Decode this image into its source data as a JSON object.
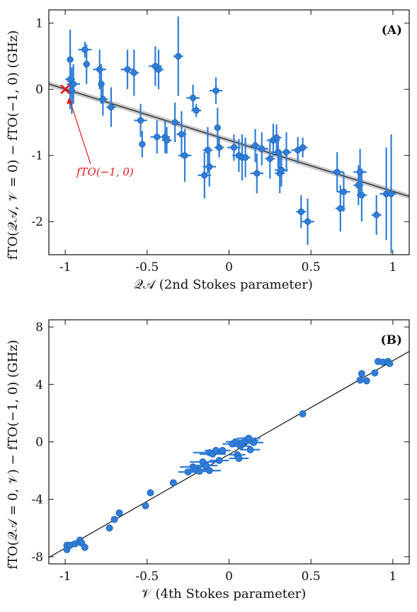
{
  "chart_data": [
    {
      "type": "scatter",
      "panel_label": "(A)",
      "xlabel": "𝒬𝒜 (2nd Stokes parameter)",
      "ylabel": "fTO(𝒬𝒜, 𝒱 = 0) − fTO(−1, 0) (GHz)",
      "xlim": [
        -1.1,
        1.1
      ],
      "ylim": [
        -2.5,
        1.2
      ],
      "x_ticks": [
        -1,
        -0.5,
        0,
        0.5,
        1
      ],
      "x_tick_labels": [
        "-1",
        "-0.5",
        "0",
        "0.5",
        "1"
      ],
      "y_ticks": [
        1,
        0,
        -1,
        -2
      ],
      "y_tick_labels": [
        "1",
        "0",
        "-1",
        "-2"
      ],
      "grid": false,
      "annotation": {
        "text": "fTO(−1, 0)",
        "x": -1.0,
        "y": 0.0
      },
      "fit_line": {
        "x": [
          -1.1,
          1.1
        ],
        "y": [
          0.08,
          -1.62
        ]
      },
      "points": [
        {
          "x": -0.97,
          "y": 0.45,
          "xerr": 0.02,
          "yerr": 0.45
        },
        {
          "x": -0.97,
          "y": 0.15,
          "xerr": 0.03,
          "yerr": 0.45
        },
        {
          "x": -0.96,
          "y": -0.02,
          "xerr": 0.02,
          "yerr": 0.35
        },
        {
          "x": -0.95,
          "y": 0.08,
          "xerr": 0.04,
          "yerr": 0.3
        },
        {
          "x": -0.88,
          "y": 0.6,
          "xerr": 0.04,
          "yerr": 0.12
        },
        {
          "x": -0.87,
          "y": 0.38,
          "xerr": 0.02,
          "yerr": 0.3
        },
        {
          "x": -0.79,
          "y": 0.3,
          "xerr": 0.04,
          "yerr": 0.3
        },
        {
          "x": -0.78,
          "y": 0.08,
          "xerr": 0.02,
          "yerr": 0.3
        },
        {
          "x": -0.77,
          "y": -0.15,
          "xerr": 0.03,
          "yerr": 0.25
        },
        {
          "x": -0.72,
          "y": -0.27,
          "xerr": 0.03,
          "yerr": 0.3
        },
        {
          "x": -0.62,
          "y": 0.3,
          "xerr": 0.04,
          "yerr": 0.3
        },
        {
          "x": -0.58,
          "y": 0.25,
          "xerr": 0.03,
          "yerr": 0.35
        },
        {
          "x": -0.54,
          "y": -0.47,
          "xerr": 0.04,
          "yerr": 0.25
        },
        {
          "x": -0.53,
          "y": -0.83,
          "xerr": 0.02,
          "yerr": 0.2
        },
        {
          "x": -0.45,
          "y": 0.35,
          "xerr": 0.04,
          "yerr": 0.3
        },
        {
          "x": -0.43,
          "y": 0.3,
          "xerr": 0.03,
          "yerr": 0.3
        },
        {
          "x": -0.44,
          "y": -0.72,
          "xerr": 0.04,
          "yerr": 0.25
        },
        {
          "x": -0.39,
          "y": -0.72,
          "xerr": 0.03,
          "yerr": 0.25
        },
        {
          "x": -0.38,
          "y": -0.77,
          "xerr": 0.03,
          "yerr": 0.2
        },
        {
          "x": -0.33,
          "y": -0.5,
          "xerr": 0.03,
          "yerr": 0.3
        },
        {
          "x": -0.31,
          "y": 0.5,
          "xerr": 0.03,
          "yerr": 0.6
        },
        {
          "x": -0.29,
          "y": -0.68,
          "xerr": 0.03,
          "yerr": 0.35
        },
        {
          "x": -0.27,
          "y": -1.0,
          "xerr": 0.04,
          "yerr": 0.4
        },
        {
          "x": -0.22,
          "y": -0.13,
          "xerr": 0.04,
          "yerr": 0.2
        },
        {
          "x": -0.2,
          "y": -0.32,
          "xerr": 0.03,
          "yerr": 0.1
        },
        {
          "x": -0.15,
          "y": -1.3,
          "xerr": 0.04,
          "yerr": 0.35
        },
        {
          "x": -0.13,
          "y": -0.92,
          "xerr": 0.03,
          "yerr": 0.35
        },
        {
          "x": -0.12,
          "y": -1.17,
          "xerr": 0.04,
          "yerr": 0.3
        },
        {
          "x": -0.08,
          "y": -0.02,
          "xerr": 0.04,
          "yerr": 0.2
        },
        {
          "x": -0.07,
          "y": -0.58,
          "xerr": 0.02,
          "yerr": 0.3
        },
        {
          "x": -0.06,
          "y": -0.88,
          "xerr": 0.03,
          "yerr": 0.15
        },
        {
          "x": 0.03,
          "y": -0.88,
          "xerr": 0.04,
          "yerr": 0.2
        },
        {
          "x": 0.06,
          "y": -1.0,
          "xerr": 0.04,
          "yerr": 0.25
        },
        {
          "x": 0.08,
          "y": -1.03,
          "xerr": 0.04,
          "yerr": 0.35
        },
        {
          "x": 0.1,
          "y": -1.03,
          "xerr": 0.03,
          "yerr": 0.3
        },
        {
          "x": 0.16,
          "y": -0.85,
          "xerr": 0.03,
          "yerr": 0.25
        },
        {
          "x": 0.17,
          "y": -1.27,
          "xerr": 0.04,
          "yerr": 0.3
        },
        {
          "x": 0.2,
          "y": -0.9,
          "xerr": 0.04,
          "yerr": 0.25
        },
        {
          "x": 0.25,
          "y": -1.05,
          "xerr": 0.03,
          "yerr": 0.3
        },
        {
          "x": 0.27,
          "y": -0.77,
          "xerr": 0.04,
          "yerr": 0.25
        },
        {
          "x": 0.29,
          "y": -0.73,
          "xerr": 0.03,
          "yerr": 0.2
        },
        {
          "x": 0.3,
          "y": -0.95,
          "xerr": 0.04,
          "yerr": 0.25
        },
        {
          "x": 0.31,
          "y": -1.27,
          "xerr": 0.03,
          "yerr": 0.3
        },
        {
          "x": 0.32,
          "y": -1.22,
          "xerr": 0.04,
          "yerr": 0.25
        },
        {
          "x": 0.35,
          "y": -0.95,
          "xerr": 0.03,
          "yerr": 0.3
        },
        {
          "x": 0.42,
          "y": -0.92,
          "xerr": 0.04,
          "yerr": 0.2
        },
        {
          "x": 0.44,
          "y": -1.85,
          "xerr": 0.03,
          "yerr": 0.25
        },
        {
          "x": 0.45,
          "y": -0.88,
          "xerr": 0.03,
          "yerr": 0.15
        },
        {
          "x": 0.48,
          "y": -2.0,
          "xerr": 0.04,
          "yerr": 0.35
        },
        {
          "x": 0.66,
          "y": -1.25,
          "xerr": 0.04,
          "yerr": 0.3
        },
        {
          "x": 0.68,
          "y": -1.8,
          "xerr": 0.03,
          "yerr": 0.35
        },
        {
          "x": 0.7,
          "y": -1.55,
          "xerr": 0.04,
          "yerr": 0.3
        },
        {
          "x": 0.79,
          "y": -1.45,
          "xerr": 0.03,
          "yerr": 0.3
        },
        {
          "x": 0.8,
          "y": -1.25,
          "xerr": 0.04,
          "yerr": 0.35
        },
        {
          "x": 0.81,
          "y": -1.6,
          "xerr": 0.03,
          "yerr": 0.4
        },
        {
          "x": 0.9,
          "y": -1.9,
          "xerr": 0.03,
          "yerr": 0.3
        },
        {
          "x": 0.96,
          "y": -1.58,
          "xerr": 0.04,
          "yerr": 0.7
        },
        {
          "x": 0.99,
          "y": -1.58,
          "xerr": 0.03,
          "yerr": 0.9
        }
      ]
    },
    {
      "type": "scatter",
      "panel_label": "(B)",
      "xlabel": "𝒱 (4th Stokes parameter)",
      "ylabel": "fTO(𝒬𝒜 = 0, 𝒱) − fTO(−1, 0) (GHz)",
      "xlim": [
        -1.1,
        1.1
      ],
      "ylim": [
        -8.5,
        8.5
      ],
      "x_ticks": [
        -1,
        -0.5,
        0,
        0.5,
        1
      ],
      "x_tick_labels": [
        "-1",
        "-0.5",
        "0",
        "0.5",
        "1"
      ],
      "y_ticks": [
        8,
        4,
        0,
        -4,
        -8
      ],
      "y_tick_labels": [
        "8",
        "4",
        "0",
        "-4",
        "-8"
      ],
      "grid": false,
      "fit_line": {
        "x": [
          -1.1,
          1.1
        ],
        "y": [
          -8.05,
          6.3
        ]
      },
      "points": [
        {
          "x": -0.99,
          "y": -7.5,
          "xerr": 0.01
        },
        {
          "x": -0.99,
          "y": -7.2,
          "xerr": 0.01
        },
        {
          "x": -0.97,
          "y": -7.2,
          "xerr": 0.01
        },
        {
          "x": -0.94,
          "y": -7.1,
          "xerr": 0.01
        },
        {
          "x": -0.91,
          "y": -6.85,
          "xerr": 0.01
        },
        {
          "x": -0.9,
          "y": -7.05,
          "xerr": 0.01
        },
        {
          "x": -0.88,
          "y": -7.35,
          "xerr": 0.01
        },
        {
          "x": -0.73,
          "y": -6.0,
          "xerr": 0.01
        },
        {
          "x": -0.7,
          "y": -5.4,
          "xerr": 0.01
        },
        {
          "x": -0.67,
          "y": -4.95,
          "xerr": 0.01
        },
        {
          "x": -0.51,
          "y": -4.45,
          "xerr": 0.01
        },
        {
          "x": -0.48,
          "y": -3.55,
          "xerr": 0.01
        },
        {
          "x": -0.34,
          "y": -2.85,
          "xerr": 0.02
        },
        {
          "x": -0.25,
          "y": -2.1,
          "xerr": 0.06
        },
        {
          "x": -0.22,
          "y": -1.75,
          "xerr": 0.08
        },
        {
          "x": -0.2,
          "y": -1.95,
          "xerr": 0.07
        },
        {
          "x": -0.18,
          "y": -2.05,
          "xerr": 0.06
        },
        {
          "x": -0.16,
          "y": -1.4,
          "xerr": 0.08
        },
        {
          "x": -0.14,
          "y": -1.65,
          "xerr": 0.07
        },
        {
          "x": -0.12,
          "y": -0.75,
          "xerr": 0.1
        },
        {
          "x": -0.12,
          "y": -2.0,
          "xerr": 0.07
        },
        {
          "x": -0.1,
          "y": -0.85,
          "xerr": 0.08
        },
        {
          "x": -0.08,
          "y": -0.6,
          "xerr": 0.07
        },
        {
          "x": -0.06,
          "y": -1.3,
          "xerr": 0.06
        },
        {
          "x": -0.04,
          "y": -0.6,
          "xerr": 0.05
        },
        {
          "x": 0.02,
          "y": -0.15,
          "xerr": 0.06
        },
        {
          "x": 0.04,
          "y": 0.0,
          "xerr": 0.06
        },
        {
          "x": 0.05,
          "y": -0.9,
          "xerr": 0.05
        },
        {
          "x": 0.06,
          "y": -1.15,
          "xerr": 0.06
        },
        {
          "x": 0.07,
          "y": -0.3,
          "xerr": 0.06
        },
        {
          "x": 0.08,
          "y": -0.1,
          "xerr": 0.08
        },
        {
          "x": 0.1,
          "y": 0.1,
          "xerr": 0.08
        },
        {
          "x": 0.12,
          "y": 0.25,
          "xerr": 0.07
        },
        {
          "x": 0.13,
          "y": -0.55,
          "xerr": 0.06
        },
        {
          "x": 0.15,
          "y": -0.05,
          "xerr": 0.06
        },
        {
          "x": 0.45,
          "y": 1.95,
          "xerr": 0.01
        },
        {
          "x": 0.8,
          "y": 4.3,
          "xerr": 0.01
        },
        {
          "x": 0.81,
          "y": 4.75,
          "xerr": 0.01
        },
        {
          "x": 0.84,
          "y": 4.25,
          "xerr": 0.01
        },
        {
          "x": 0.89,
          "y": 4.8,
          "xerr": 0.01
        },
        {
          "x": 0.91,
          "y": 5.6,
          "xerr": 0.01
        },
        {
          "x": 0.94,
          "y": 5.55,
          "xerr": 0.01
        },
        {
          "x": 0.97,
          "y": 5.6,
          "xerr": 0.01
        },
        {
          "x": 0.98,
          "y": 5.45,
          "xerr": 0.01
        }
      ]
    }
  ]
}
